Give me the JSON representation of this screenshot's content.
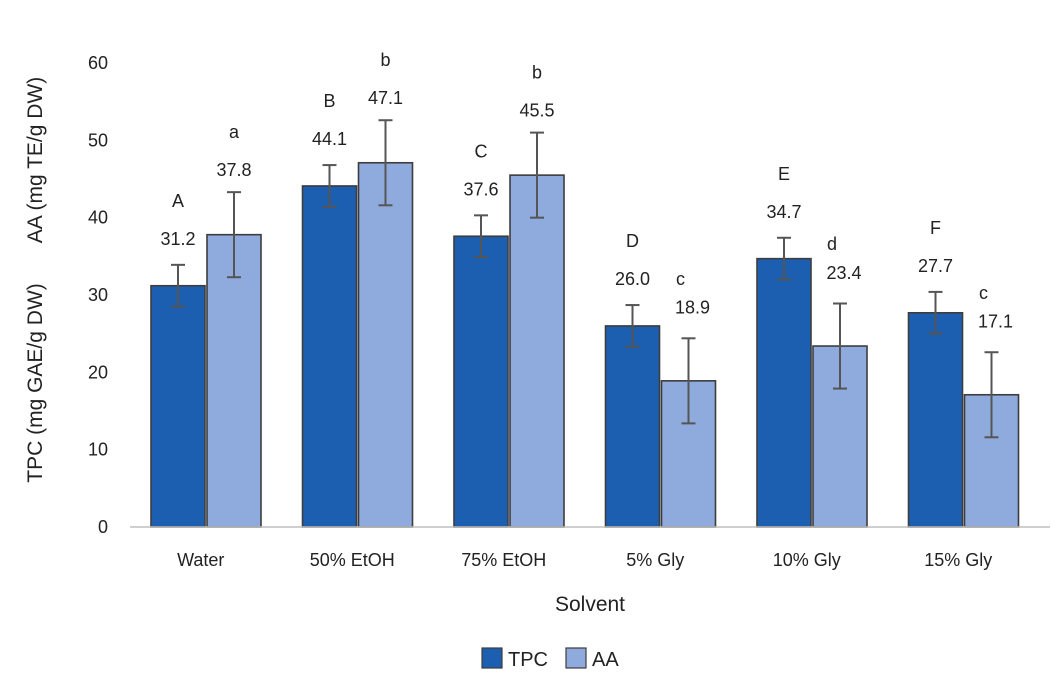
{
  "chart_data": {
    "type": "bar",
    "title": "",
    "xlabel": "Solvent",
    "ylabel_lines": [
      "TPC (mg GAE/g DW)",
      "AA (mg TE/g DW)"
    ],
    "categories": [
      "Water",
      "50% EtOH",
      "75% EtOH",
      "5% Gly",
      "10% Gly",
      "15% Gly"
    ],
    "ylim": [
      0,
      60
    ],
    "yticks": [
      0,
      10,
      20,
      30,
      40,
      50,
      60
    ],
    "grid": false,
    "legend_position": "bottom-center",
    "series": [
      {
        "name": "TPC",
        "color": "#1c5fb0",
        "values": [
          31.2,
          44.1,
          37.6,
          26.0,
          34.7,
          27.7
        ],
        "value_labels": [
          "31.2",
          "44.1",
          "37.6",
          "26.0",
          "34.7",
          "27.7"
        ],
        "errors": [
          2.7,
          2.7,
          2.7,
          2.7,
          2.7,
          2.7
        ],
        "letters": [
          "A",
          "B",
          "C",
          "D",
          "E",
          "F"
        ]
      },
      {
        "name": "AA",
        "color": "#8faadc",
        "values": [
          37.8,
          47.1,
          45.5,
          18.9,
          23.4,
          17.1
        ],
        "value_labels": [
          "37.8",
          "47.1",
          "45.5",
          "18.9",
          "23.4",
          "17.1"
        ],
        "errors": [
          5.5,
          5.5,
          5.5,
          5.5,
          5.5,
          5.5
        ],
        "letters": [
          "a",
          "b",
          "b",
          "c",
          "d",
          "c"
        ]
      }
    ]
  }
}
